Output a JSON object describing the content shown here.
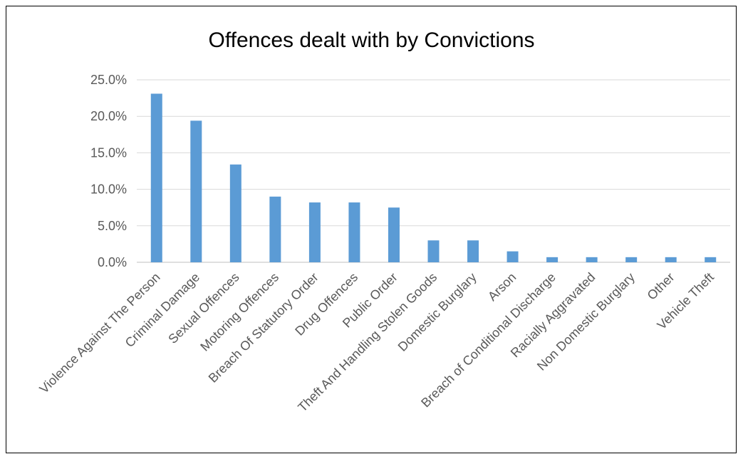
{
  "chart_data": {
    "type": "bar",
    "title": "Offences dealt with by Convictions",
    "xlabel": "",
    "ylabel": "",
    "ylim": [
      0,
      25
    ],
    "y_tick_labels": [
      "0.0%",
      "5.0%",
      "10.0%",
      "15.0%",
      "20.0%",
      "25.0%"
    ],
    "grid": true,
    "legend": "none",
    "bar_color": "#5b9bd5",
    "categories": [
      "Violence Against The Person",
      "Criminal Damage",
      "Sexual Offences",
      "Motoring Offences",
      "Breach Of Statutory Order",
      "Drug Offences",
      "Public Order",
      "Theft And Handling Stolen Goods",
      "Domestic Burglary",
      "Arson",
      "Breach of Conditional Discharge",
      "Racially Aggravated",
      "Non Domestic Burglary",
      "Other",
      "Vehicle Theft"
    ],
    "values": [
      23.1,
      19.4,
      13.4,
      9.0,
      8.2,
      8.2,
      7.5,
      3.0,
      3.0,
      1.5,
      0.7,
      0.7,
      0.7,
      0.7,
      0.7
    ]
  }
}
